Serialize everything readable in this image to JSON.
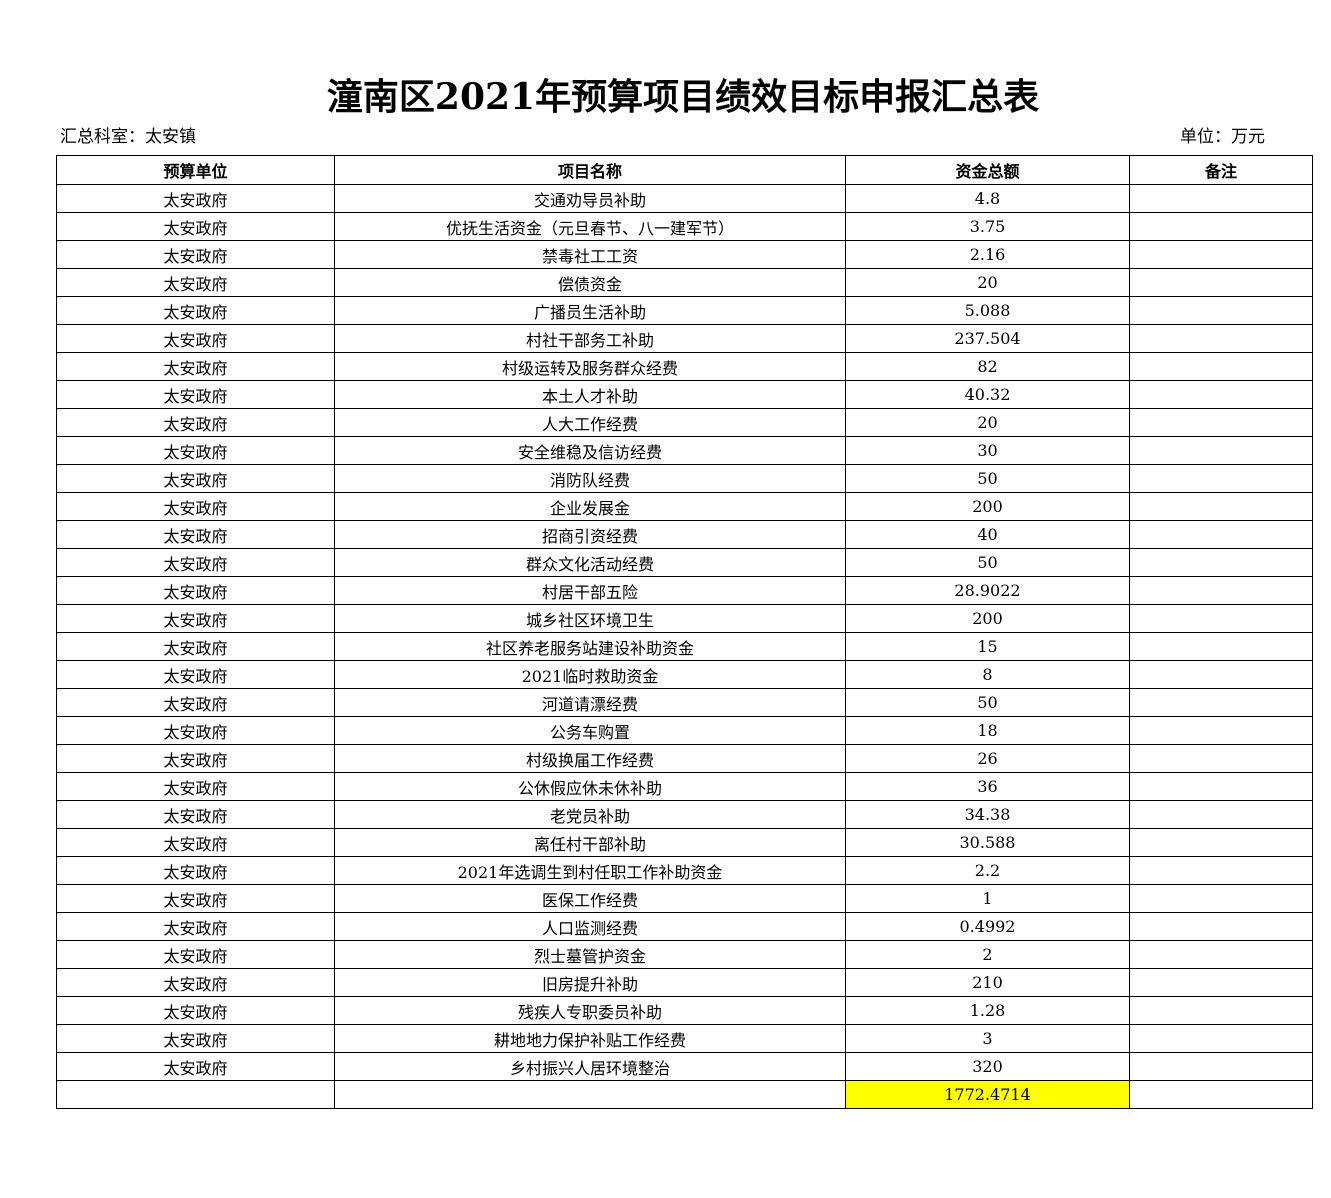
{
  "title": "潼南区2021年预算项目绩效目标申报汇总表",
  "department_label": "汇总科室：太安镇",
  "unit_label": "单位：万元",
  "columns": [
    "预算单位",
    "项目名称",
    "资金总额",
    "备注"
  ],
  "rows": [
    {
      "unit": "太安政府",
      "name": "交通劝导员补助",
      "amount": "4.8",
      "note": ""
    },
    {
      "unit": "太安政府",
      "name": "优抚生活资金（元旦春节、八一建军节）",
      "amount": "3.75",
      "note": ""
    },
    {
      "unit": "太安政府",
      "name": "禁毒社工工资",
      "amount": "2.16",
      "note": ""
    },
    {
      "unit": "太安政府",
      "name": "偿债资金",
      "amount": "20",
      "note": ""
    },
    {
      "unit": "太安政府",
      "name": "广播员生活补助",
      "amount": "5.088",
      "note": ""
    },
    {
      "unit": "太安政府",
      "name": "村社干部务工补助",
      "amount": "237.504",
      "note": ""
    },
    {
      "unit": "太安政府",
      "name": "村级运转及服务群众经费",
      "amount": "82",
      "note": ""
    },
    {
      "unit": "太安政府",
      "name": "本土人才补助",
      "amount": "40.32",
      "note": ""
    },
    {
      "unit": "太安政府",
      "name": "人大工作经费",
      "amount": "20",
      "note": ""
    },
    {
      "unit": "太安政府",
      "name": "安全维稳及信访经费",
      "amount": "30",
      "note": ""
    },
    {
      "unit": "太安政府",
      "name": "消防队经费",
      "amount": "50",
      "note": ""
    },
    {
      "unit": "太安政府",
      "name": "企业发展金",
      "amount": "200",
      "note": ""
    },
    {
      "unit": "太安政府",
      "name": "招商引资经费",
      "amount": "40",
      "note": ""
    },
    {
      "unit": "太安政府",
      "name": "群众文化活动经费",
      "amount": "50",
      "note": ""
    },
    {
      "unit": "太安政府",
      "name": "村居干部五险",
      "amount": "28.9022",
      "note": ""
    },
    {
      "unit": "太安政府",
      "name": "城乡社区环境卫生",
      "amount": "200",
      "note": ""
    },
    {
      "unit": "太安政府",
      "name": "社区养老服务站建设补助资金",
      "amount": "15",
      "note": ""
    },
    {
      "unit": "太安政府",
      "name": "2021临时救助资金",
      "amount": "8",
      "note": ""
    },
    {
      "unit": "太安政府",
      "name": "河道请漂经费",
      "amount": "50",
      "note": ""
    },
    {
      "unit": "太安政府",
      "name": "公务车购置",
      "amount": "18",
      "note": ""
    },
    {
      "unit": "太安政府",
      "name": "村级换届工作经费",
      "amount": "26",
      "note": ""
    },
    {
      "unit": "太安政府",
      "name": "公休假应休未休补助",
      "amount": "36",
      "note": ""
    },
    {
      "unit": "太安政府",
      "name": "老党员补助",
      "amount": "34.38",
      "note": ""
    },
    {
      "unit": "太安政府",
      "name": "离任村干部补助",
      "amount": "30.588",
      "note": ""
    },
    {
      "unit": "太安政府",
      "name": "2021年选调生到村任职工作补助资金",
      "amount": "2.2",
      "note": ""
    },
    {
      "unit": "太安政府",
      "name": "医保工作经费",
      "amount": "1",
      "note": ""
    },
    {
      "unit": "太安政府",
      "name": "人口监测经费",
      "amount": "0.4992",
      "note": ""
    },
    {
      "unit": "太安政府",
      "name": "烈士墓管护资金",
      "amount": "2",
      "note": ""
    },
    {
      "unit": "太安政府",
      "name": "旧房提升补助",
      "amount": "210",
      "note": ""
    },
    {
      "unit": "太安政府",
      "name": "残疾人专职委员补助",
      "amount": "1.28",
      "note": ""
    },
    {
      "unit": "太安政府",
      "name": "耕地地力保护补贴工作经费",
      "amount": "3",
      "note": ""
    },
    {
      "unit": "太安政府",
      "name": "乡村振兴人居环境整治",
      "amount": "320",
      "note": ""
    }
  ],
  "total": {
    "unit": "",
    "name": "",
    "amount": "1772.4714",
    "note": ""
  },
  "colors": {
    "total_highlight": "#ffff00"
  }
}
